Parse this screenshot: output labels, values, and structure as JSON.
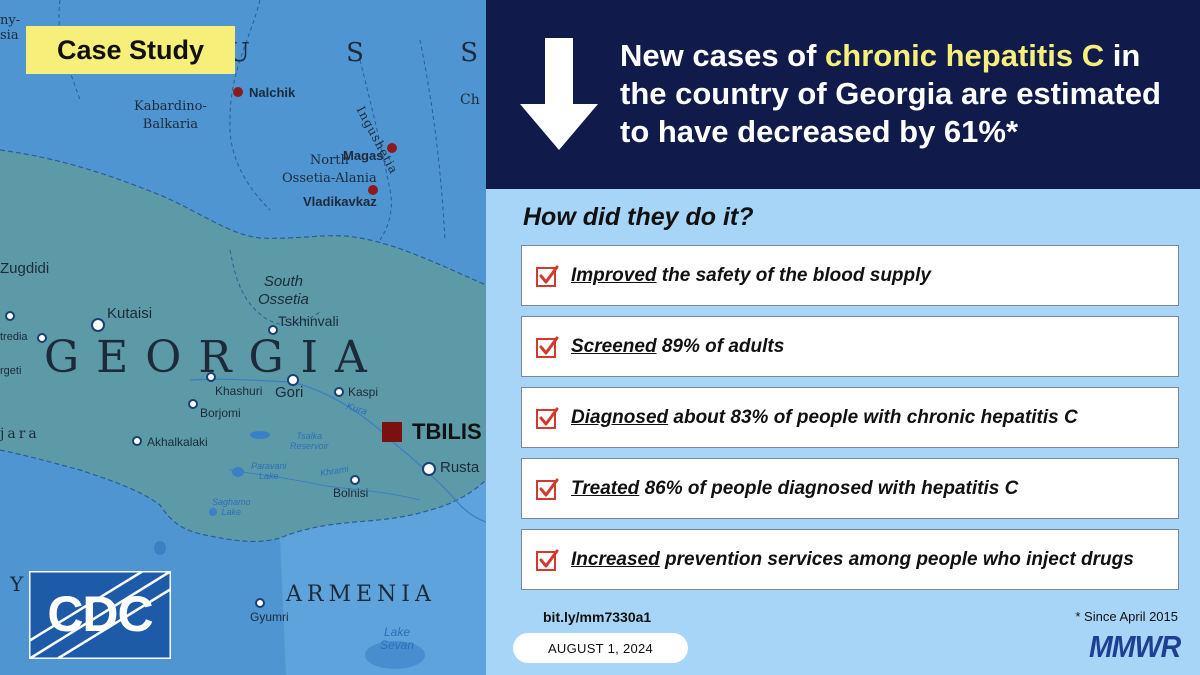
{
  "badge": {
    "label": "Case Study"
  },
  "map": {
    "labels": {
      "russia_partial": "U S S I",
      "russia_edge": "ny-\nsia",
      "ch_partial": "Ch",
      "kabardino": "Kabardino-\nBalkaria",
      "nalchik": "Nalchik",
      "ingushetia": "Ingushetia",
      "magas": "Magas",
      "north_ossetia": "North\nOssetia-Alania",
      "vladikavkaz": "Vladikavkaz",
      "zugdidi": "Zugdidi",
      "kutaisi": "Kutaisi",
      "south_ossetia": "South\nOssetia",
      "tskhinvali": "Tskhinvali",
      "tredia": "tredia",
      "rgeti": "rgeti",
      "georgia": "GEORGIA",
      "khashuri": "Khashuri",
      "gori": "Gori",
      "kaspi": "Kaspi",
      "borjomi": "Borjomi",
      "kura": "Kura",
      "tbilisi": "TBILIS",
      "jara": "jara",
      "akhalkalaki": "Akhalkalaki",
      "tsalka": "Tsalka\nReservoir",
      "paravani": "Paravani\nLake",
      "khrami": "Khrami",
      "rustavi": "Rusta",
      "bolnisi": "Bolnisi",
      "saghamo": "Saghamo\nLake",
      "y_edge": "Y",
      "armenia": "ARMENIA",
      "gyumri": "Gyumri",
      "lake_sevan": "Lake\nSevan"
    }
  },
  "cdc_logo": {
    "text": "CDC"
  },
  "header": {
    "headline_pre": "New cases of ",
    "headline_highlight": "chronic hepatitis C",
    "headline_post": " in the country of Georgia are estimated to have decreased by 61%*"
  },
  "content": {
    "question": "How did they do it?",
    "items": [
      {
        "keyword": "Improved",
        "rest": " the safety of the blood supply"
      },
      {
        "keyword": "Screened",
        "rest": " 89% of adults"
      },
      {
        "keyword": "Diagnosed",
        "rest": " about 83% of people with chronic hepatitis C"
      },
      {
        "keyword": "Treated",
        "rest": " 86% of people diagnosed with hepatitis C"
      },
      {
        "keyword": "Increased",
        "rest": " prevention services among people who inject drugs"
      }
    ],
    "short_link": "bit.ly/mm7330a1",
    "footnote": "* Since April 2015",
    "date": "AUGUST 1, 2024",
    "mmwr": "MMWR"
  },
  "colors": {
    "header_bg": "#101b4b",
    "content_bg": "#a7d5f7",
    "highlight_yellow": "#f6ef7a",
    "check_red": "#d23a2e",
    "mmwr_blue": "#1f3f92",
    "cdc_blue": "#1d5aa8"
  }
}
